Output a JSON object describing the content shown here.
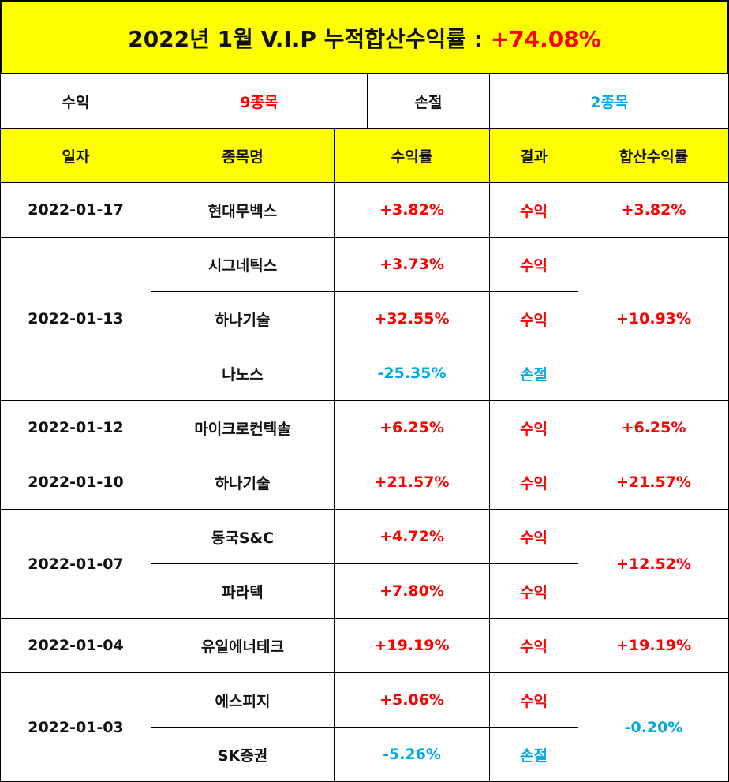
{
  "title": {
    "label": "2022년 1월 V.I.P 누적합산수익률 :",
    "value": "+74.08%"
  },
  "summary": {
    "profit_label": "수익",
    "profit_value": "9종목",
    "loss_label": "손절",
    "loss_value": "2종목"
  },
  "headers": [
    "일자",
    "종목명",
    "수익률",
    "결과",
    "합산수익률"
  ],
  "groups": [
    {
      "date": "2022-01-17",
      "total": "+3.82%",
      "total_sign": "pos",
      "rows": [
        {
          "name": "현대무벡스",
          "rate": "+3.82%",
          "result": "수익",
          "sign": "pos"
        }
      ]
    },
    {
      "date": "2022-01-13",
      "total": "+10.93%",
      "total_sign": "pos",
      "rows": [
        {
          "name": "시그네틱스",
          "rate": "+3.73%",
          "result": "수익",
          "sign": "pos"
        },
        {
          "name": "하나기술",
          "rate": "+32.55%",
          "result": "수익",
          "sign": "pos"
        },
        {
          "name": "나노스",
          "rate": "-25.35%",
          "result": "손절",
          "sign": "neg"
        }
      ]
    },
    {
      "date": "2022-01-12",
      "total": "+6.25%",
      "total_sign": "pos",
      "rows": [
        {
          "name": "마이크로컨텍솔",
          "rate": "+6.25%",
          "result": "수익",
          "sign": "pos"
        }
      ]
    },
    {
      "date": "2022-01-10",
      "total": "+21.57%",
      "total_sign": "pos",
      "rows": [
        {
          "name": "하나기술",
          "rate": "+21.57%",
          "result": "수익",
          "sign": "pos"
        }
      ]
    },
    {
      "date": "2022-01-07",
      "total": "+12.52%",
      "total_sign": "pos",
      "rows": [
        {
          "name": "동국S&C",
          "rate": "+4.72%",
          "result": "수익",
          "sign": "pos"
        },
        {
          "name": "파라텍",
          "rate": "+7.80%",
          "result": "수익",
          "sign": "pos"
        }
      ]
    },
    {
      "date": "2022-01-04",
      "total": "+19.19%",
      "total_sign": "pos",
      "rows": [
        {
          "name": "유일에너테크",
          "rate": "+19.19%",
          "result": "수익",
          "sign": "pos"
        }
      ]
    },
    {
      "date": "2022-01-03",
      "total": "-0.20%",
      "total_sign": "neg",
      "rows": [
        {
          "name": "에스피지",
          "rate": "+5.06%",
          "result": "수익",
          "sign": "pos"
        },
        {
          "name": "SK증권",
          "rate": "-5.26%",
          "result": "손절",
          "sign": "neg"
        }
      ]
    }
  ],
  "colors": {
    "header_bg": "#ffff00",
    "profit": "#ff0000",
    "loss": "#00a8e8"
  }
}
